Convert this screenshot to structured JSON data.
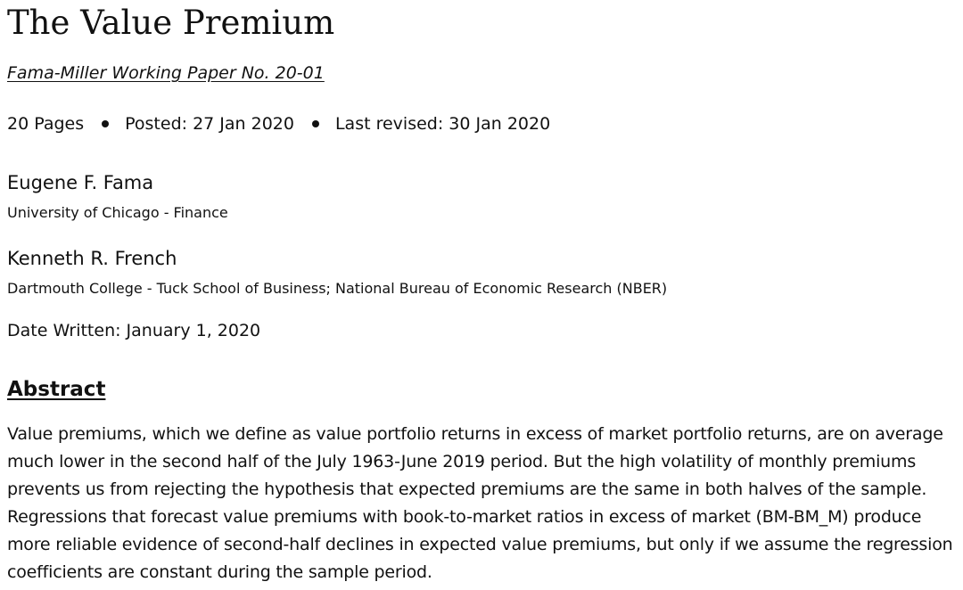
{
  "paper": {
    "title": "The Value Premium",
    "series": "Fama-Miller Working Paper No. 20-01",
    "pages": "20 Pages",
    "posted": "Posted: 27 Jan 2020",
    "last_revised": "Last revised: 30 Jan 2020",
    "authors": [
      {
        "name": "Eugene F. Fama",
        "affiliation": "University of Chicago - Finance"
      },
      {
        "name": "Kenneth R. French",
        "affiliation": "Dartmouth College - Tuck School of Business; National Bureau of Economic Research (NBER)"
      }
    ],
    "date_written": "Date Written: January 1, 2020",
    "abstract_heading": "Abstract",
    "abstract_text": "Value premiums, which we define as value portfolio returns in excess of market portfolio returns, are on average much lower in the second half of the July 1963-June 2019 period. But the high volatility of monthly premiums prevents us from rejecting the hypothesis that expected premiums are the same in both halves of the sample. Regressions that forecast value premiums with book-to-market ratios in excess of market (BM-BM_M) produce more reliable evidence of second-half declines in expected value premiums, but only if we assume the regression coefficients are constant during the sample period."
  }
}
